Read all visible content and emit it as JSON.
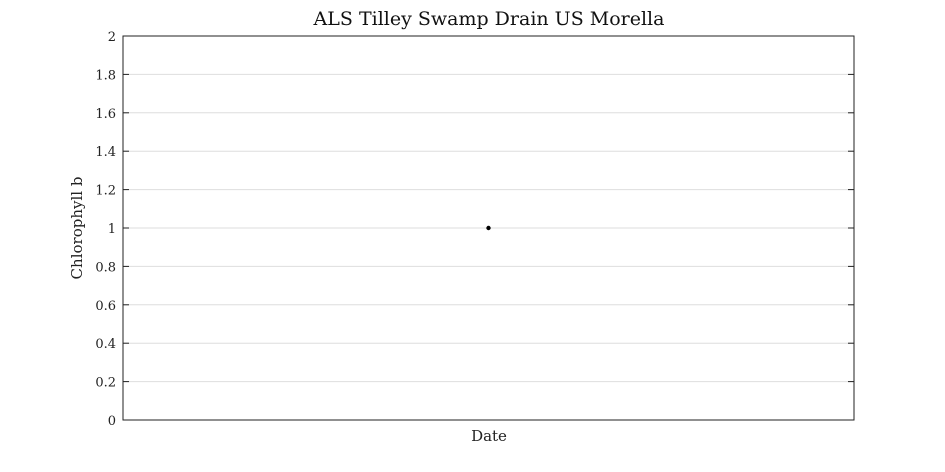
{
  "chart_data": {
    "type": "scatter",
    "title": "ALS Tilley Swamp Drain US Morella",
    "xlabel": "Date",
    "ylabel": "Chlorophyll b",
    "ylim": [
      0,
      2
    ],
    "yticks": [
      "0",
      "0.2",
      "0.4",
      "0.6",
      "0.8",
      "1",
      "1.2",
      "1.4",
      "1.6",
      "1.8",
      "2"
    ],
    "grid": "horizontal",
    "series": [
      {
        "x": [
          0.5
        ],
        "y": [
          1
        ],
        "color": "#000000"
      }
    ]
  }
}
